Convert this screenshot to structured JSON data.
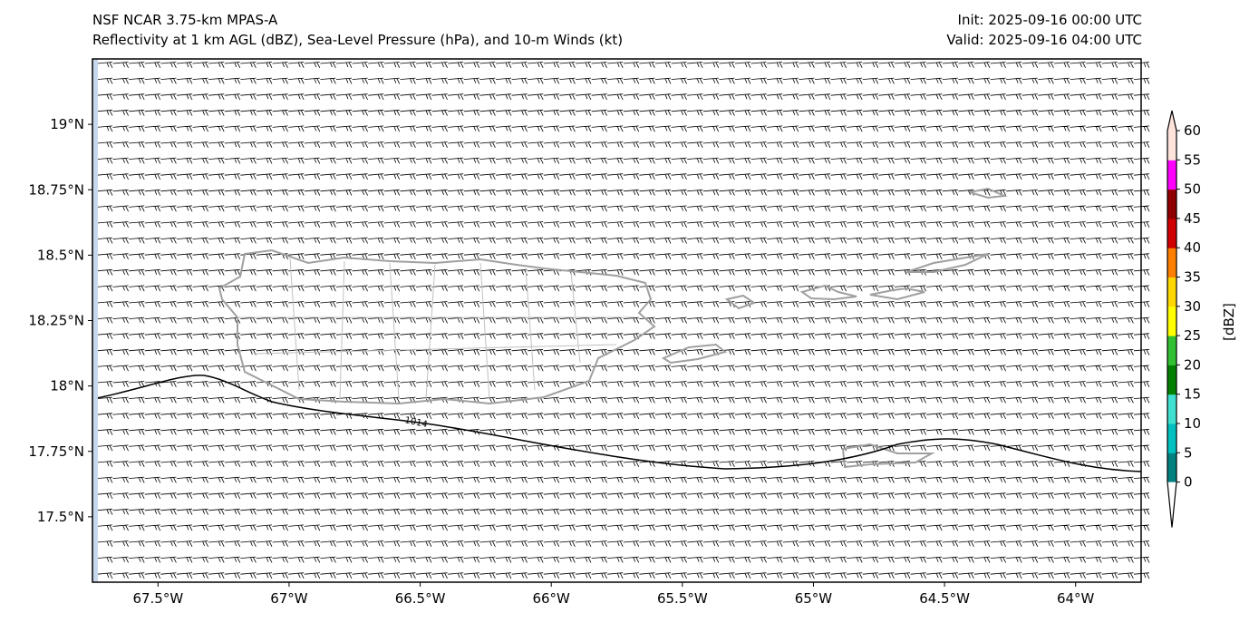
{
  "header": {
    "title_left_1": "NSF NCAR 3.75-km MPAS-A",
    "title_left_2": "Reflectivity at 1 km AGL (dBZ), Sea-Level Pressure (hPa), and 10-m Winds (kt)",
    "title_right_1": "Init: 2025-09-16 00:00 UTC",
    "title_right_2": "Valid: 2025-09-16 04:00 UTC"
  },
  "axes": {
    "x_ticks": [
      "67.5°W",
      "67°W",
      "66.5°W",
      "66°W",
      "65.5°W",
      "65°W",
      "64.5°W",
      "64°W"
    ],
    "x_values": [
      -67.5,
      -67,
      -66.5,
      -66,
      -65.5,
      -65,
      -64.5,
      -64
    ],
    "y_ticks": [
      "19°N",
      "18.75°N",
      "18.5°N",
      "18.25°N",
      "18°N",
      "17.75°N",
      "17.5°N"
    ],
    "y_values": [
      19,
      18.75,
      18.5,
      18.25,
      18,
      17.75,
      17.5
    ],
    "lon_range": [
      -67.75,
      -63.75
    ],
    "lat_range": [
      17.25,
      19.25
    ]
  },
  "contour": {
    "label": "1014",
    "level": 1014
  },
  "colorbar": {
    "label": "[dBZ]",
    "ticks": [
      "0",
      "5",
      "10",
      "15",
      "20",
      "25",
      "30",
      "35",
      "40",
      "45",
      "50",
      "55",
      "60"
    ],
    "colors": [
      "#008080",
      "#00c0c0",
      "#40e0d0",
      "#008000",
      "#32c032",
      "#ffff00",
      "#ffd700",
      "#ff8000",
      "#d00000",
      "#900000",
      "#ff00ff",
      "#ffe4dc"
    ],
    "under_color": "#ffffff",
    "over_color": "#ffe4dc"
  },
  "colors": {
    "coast": "#a0a0a0",
    "edge": "#c8d8ec"
  }
}
